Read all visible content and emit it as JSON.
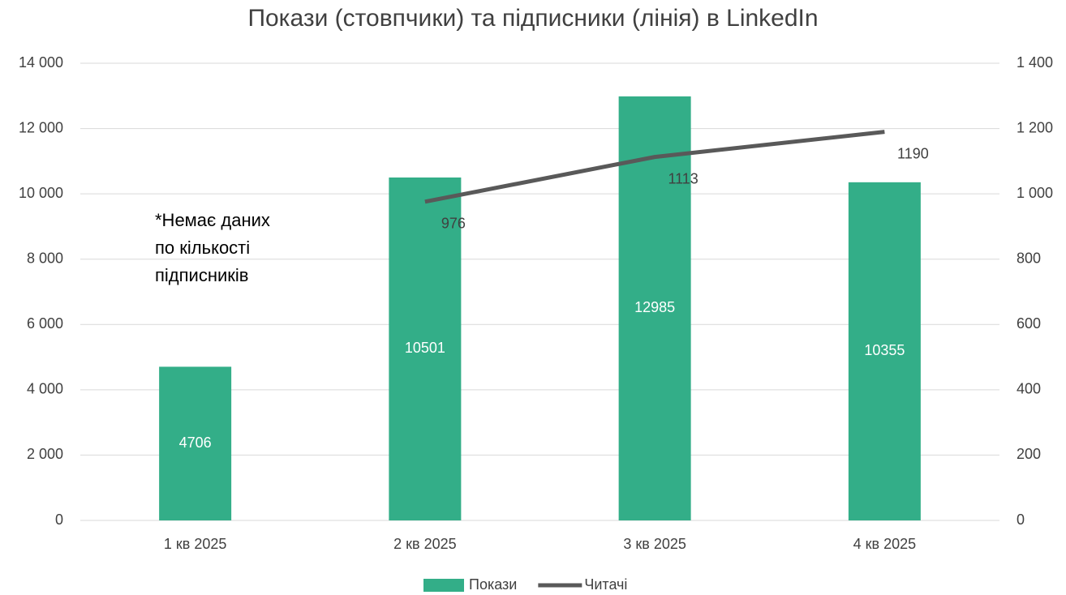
{
  "chart_data": {
    "type": "bar",
    "title": "Покази (стовпчики) та підписники (лінія) в LinkedIn",
    "categories": [
      "1 кв 2025",
      "2 кв 2025",
      "3 кв 2025",
      "4 кв 2025"
    ],
    "series": [
      {
        "name": "Покази",
        "type": "bar",
        "color": "#33ae88",
        "values": [
          4706,
          10501,
          12985,
          10355
        ]
      },
      {
        "name": "Читачі",
        "type": "line",
        "axis": "y2",
        "color": "#595959",
        "values": [
          null,
          976,
          1113,
          1190
        ]
      }
    ],
    "ylim": [
      0,
      14000
    ],
    "yticks": [
      0,
      {
        "value": 2000,
        "label": "2 000"
      },
      {
        "value": 4000,
        "label": "4 000"
      },
      {
        "value": 6000,
        "label": "6 000"
      },
      {
        "value": 8000,
        "label": "8 000"
      },
      {
        "value": 10000,
        "label": "10 000"
      },
      {
        "value": 12000,
        "label": "12 000"
      },
      {
        "value": 14000,
        "label": "14 000"
      }
    ],
    "y2lim": [
      0,
      1400
    ],
    "y2ticks": [
      0,
      200,
      400,
      600,
      800,
      {
        "value": 1000,
        "label": "1 000"
      },
      {
        "value": 1200,
        "label": "1 200"
      },
      {
        "value": 1400,
        "label": "1 400"
      }
    ],
    "grid": true,
    "legend": "bottom",
    "annotation": [
      "*Немає даних",
      "по кількості",
      "підписників"
    ]
  }
}
